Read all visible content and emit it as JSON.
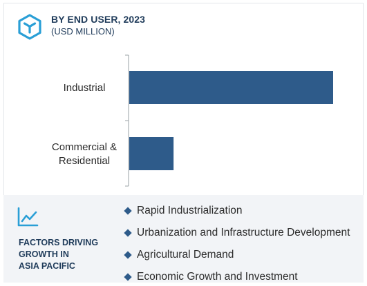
{
  "header": {
    "title": "BY END USER, 2023",
    "subtitle": "(USD MILLION)",
    "logo_icon": "cube-hexagon-icon"
  },
  "colors": {
    "bar": "#2e5b8a",
    "accent": "#2a9fd6",
    "heading": "#1f3b5a",
    "panel_bg": "#f2f4f7"
  },
  "chart_data": {
    "type": "bar",
    "orientation": "horizontal",
    "categories": [
      "Industrial",
      "Commercial &\nResidential"
    ],
    "values": [
      100,
      22
    ],
    "xlim": [
      0,
      100
    ],
    "grid": false,
    "value_labels": false
  },
  "factors": {
    "icon": "trend-line-icon",
    "heading": "FACTORS DRIVING\nGROWTH IN\nASIA PACIFIC",
    "items": [
      "Rapid Industrialization",
      "Urbanization and Infrastructure Development",
      "Agricultural Demand",
      "Economic Growth and Investment"
    ]
  }
}
